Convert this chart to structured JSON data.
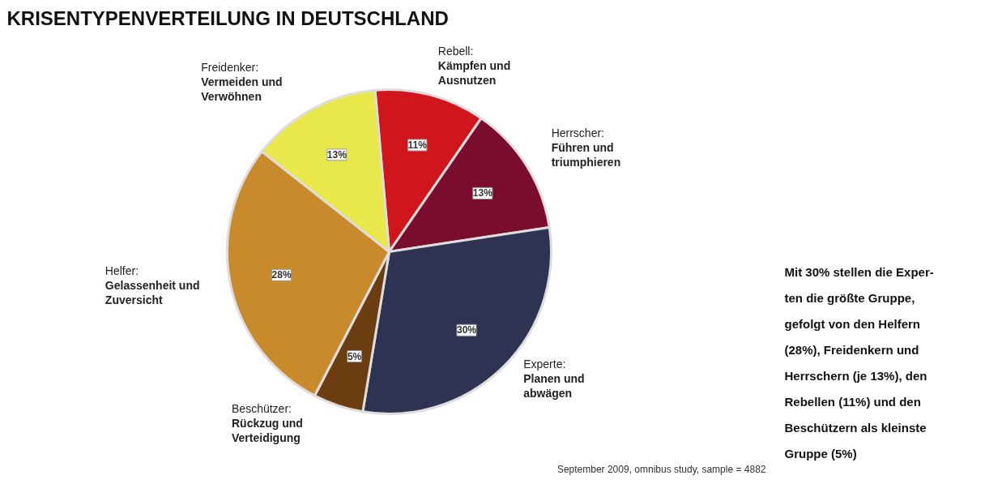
{
  "chart_data": {
    "type": "pie",
    "title": "KRISENTYPENVERTEILUNG IN DEUTSCHLAND",
    "categories": [
      "Rebell: Kämpfen und Ausnutzen",
      "Herrscher: Führen und triumphieren",
      "Experte: Planen und abwägen",
      "Beschützer: Rückzug und Verteidigung",
      "Helfer: Gelassenheit und Zuversicht",
      "Freidenker: Vermeiden und Verwöhnen"
    ],
    "values": [
      11,
      13,
      30,
      5,
      28,
      13
    ],
    "value_labels": [
      "11%",
      "13%",
      "30%",
      "5%",
      "28%",
      "13%"
    ],
    "colors": [
      "#d0161c",
      "#7a0d2e",
      "#2e3352",
      "#6b3d10",
      "#c98a2c",
      "#e8e84a"
    ],
    "annotations": [
      "Mit 30% stellen die Exper-\nten die größte Gruppe,\ngefolgt von den Helfern\n(28%), Freidenkern und\nHerrschern (je 13%), den\nRebellen (11%) und den\nBeschützern als kleinste\nGruppe (5%)",
      "September 2009, omnibus study, sample = 4882"
    ]
  }
}
